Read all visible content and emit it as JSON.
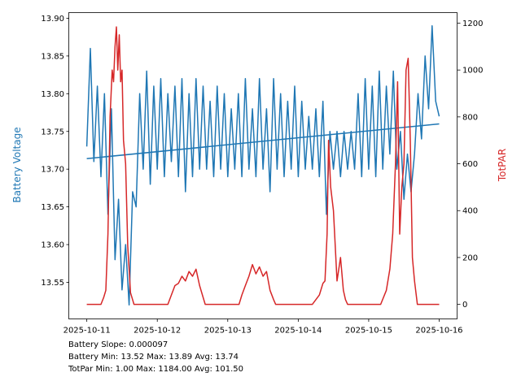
{
  "chart_data": {
    "type": "line",
    "x_unit": "days since 2025-10-11",
    "xlim": [
      -0.25,
      5.26
    ],
    "x_ticks": [
      0,
      1,
      2,
      3,
      4,
      5
    ],
    "x_tick_labels": [
      "2025-10-11",
      "2025-10-12",
      "2025-10-13",
      "2025-10-14",
      "2025-10-15",
      "2025-10-16"
    ],
    "left_axis": {
      "label": "Battery Voltage",
      "color": "#1f77b4",
      "ylim": [
        13.5015,
        13.9075
      ],
      "ticks": [
        13.55,
        13.6,
        13.65,
        13.7,
        13.75,
        13.8,
        13.85,
        13.9
      ],
      "tick_labels": [
        "13.55",
        "13.60",
        "13.65",
        "13.70",
        "13.75",
        "13.80",
        "13.85",
        "13.90"
      ]
    },
    "right_axis": {
      "label": "TotPAR",
      "color": "#d62728",
      "ylim": [
        -62,
        1245
      ],
      "ticks": [
        0,
        200,
        400,
        600,
        800,
        1000,
        1200
      ],
      "tick_labels": [
        "0",
        "200",
        "400",
        "600",
        "800",
        "1000",
        "1200"
      ]
    },
    "series": [
      {
        "name": "Battery Voltage",
        "axis": "left",
        "color": "#1f77b4",
        "x_start": 0,
        "x_step": 0.05,
        "values": [
          13.73,
          13.86,
          13.71,
          13.81,
          13.69,
          13.8,
          13.64,
          13.78,
          13.58,
          13.66,
          13.54,
          13.6,
          13.52,
          13.67,
          13.65,
          13.8,
          13.7,
          13.83,
          13.68,
          13.81,
          13.7,
          13.82,
          13.69,
          13.8,
          13.71,
          13.81,
          13.69,
          13.82,
          13.67,
          13.8,
          13.69,
          13.82,
          13.7,
          13.81,
          13.7,
          13.79,
          13.69,
          13.81,
          13.7,
          13.8,
          13.69,
          13.78,
          13.7,
          13.8,
          13.69,
          13.82,
          13.7,
          13.78,
          13.69,
          13.82,
          13.7,
          13.78,
          13.67,
          13.82,
          13.7,
          13.8,
          13.69,
          13.79,
          13.7,
          13.81,
          13.69,
          13.79,
          13.7,
          13.77,
          13.7,
          13.78,
          13.69,
          13.79,
          13.64,
          13.75,
          13.7,
          13.75,
          13.69,
          13.75,
          13.7,
          13.75,
          13.7,
          13.8,
          13.69,
          13.82,
          13.7,
          13.81,
          13.69,
          13.83,
          13.7,
          13.81,
          13.72,
          13.83,
          13.7,
          13.75,
          13.66,
          13.72,
          13.67,
          13.72,
          13.8,
          13.74,
          13.85,
          13.78,
          13.89,
          13.79,
          13.77
        ]
      },
      {
        "name": "Battery Trend",
        "axis": "left",
        "color": "#1f77b4",
        "x": [
          0,
          5
        ],
        "values": [
          13.714,
          13.76
        ]
      },
      {
        "name": "TotPAR",
        "axis": "right",
        "color": "#d62728",
        "x": [
          0,
          0.2,
          0.24,
          0.27,
          0.3,
          0.33,
          0.36,
          0.38,
          0.4,
          0.42,
          0.44,
          0.46,
          0.48,
          0.5,
          0.52,
          0.55,
          0.58,
          0.62,
          0.67,
          1.0,
          1.15,
          1.2,
          1.25,
          1.3,
          1.35,
          1.4,
          1.45,
          1.5,
          1.55,
          1.6,
          1.65,
          1.68,
          2.0,
          2.16,
          2.2,
          2.25,
          2.3,
          2.35,
          2.4,
          2.45,
          2.5,
          2.55,
          2.6,
          2.65,
          2.68,
          3.0,
          3.2,
          3.3,
          3.35,
          3.38,
          3.41,
          3.43,
          3.46,
          3.5,
          3.55,
          3.6,
          3.64,
          3.67,
          3.7,
          4.0,
          4.17,
          4.25,
          4.3,
          4.34,
          4.38,
          4.41,
          4.44,
          4.47,
          4.5,
          4.53,
          4.56,
          4.59,
          4.62,
          4.65,
          4.69,
          5.0
        ],
        "values": [
          0,
          0,
          30,
          60,
          300,
          800,
          1000,
          950,
          1100,
          1184,
          1000,
          1150,
          950,
          1000,
          700,
          600,
          250,
          50,
          0,
          0,
          0,
          40,
          80,
          90,
          120,
          100,
          140,
          120,
          150,
          80,
          30,
          0,
          0,
          0,
          40,
          80,
          120,
          170,
          130,
          160,
          120,
          140,
          60,
          20,
          0,
          0,
          0,
          40,
          90,
          100,
          300,
          700,
          500,
          400,
          100,
          200,
          60,
          20,
          0,
          0,
          0,
          60,
          150,
          300,
          600,
          950,
          300,
          500,
          600,
          1000,
          1050,
          700,
          200,
          100,
          0,
          0
        ]
      }
    ]
  },
  "stats": {
    "slope": "Battery Slope: 0.000097",
    "battery": "Battery Min: 13.52 Max: 13.89 Avg: 13.74",
    "totpar": "TotPar Min: 1.00 Max: 1184.00 Avg: 101.50"
  }
}
